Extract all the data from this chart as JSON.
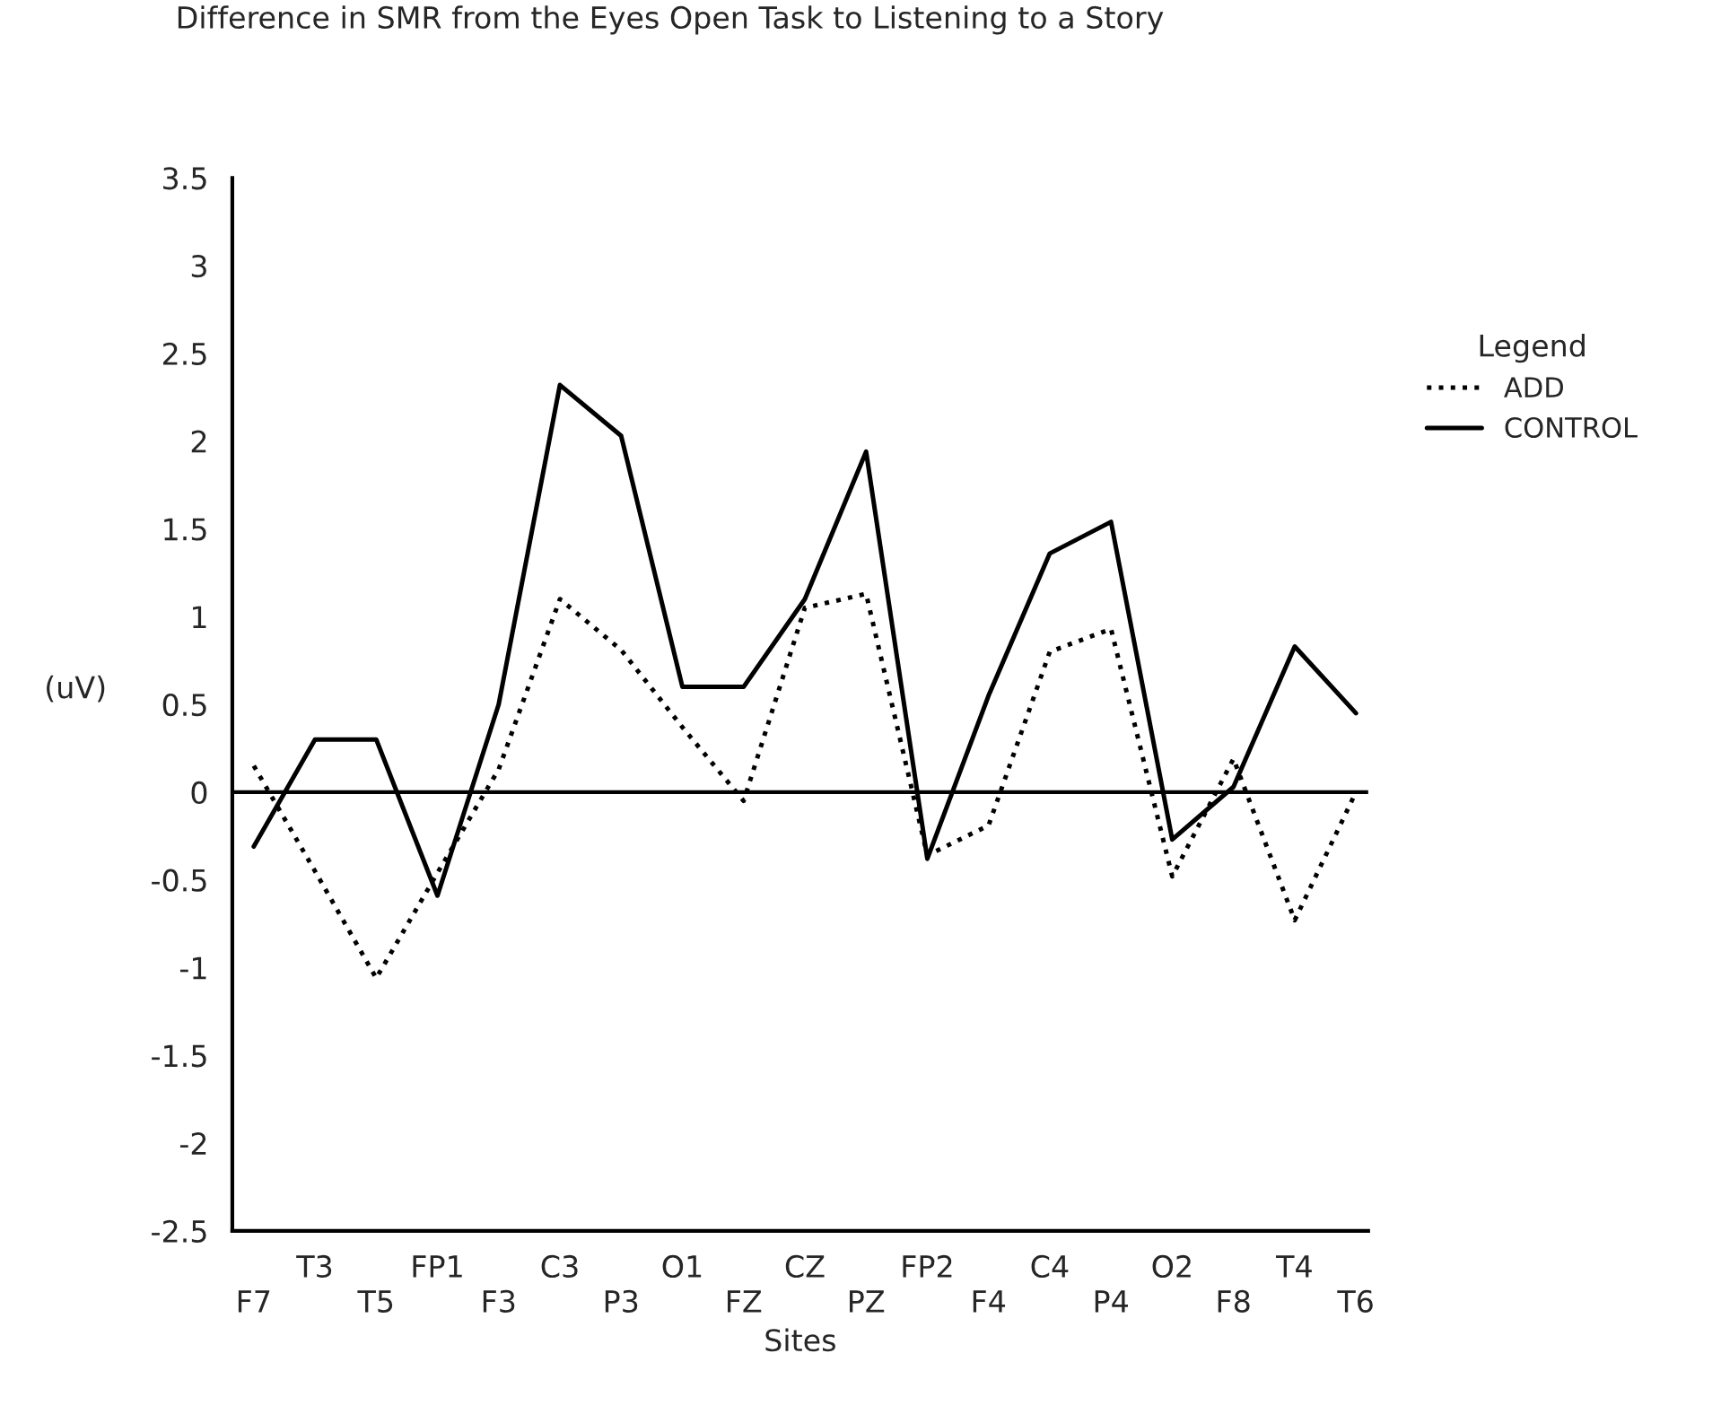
{
  "chart_data": {
    "type": "line",
    "title": "Difference in SMR from the Eyes Open Task to Listening to a Story",
    "xlabel": "Sites",
    "ylabel": "(uV)",
    "legend_title": "Legend",
    "legend": "right",
    "categories": [
      "F7",
      "T3",
      "T5",
      "FP1",
      "F3",
      "C3",
      "P3",
      "O1",
      "FZ",
      "CZ",
      "PZ",
      "FP2",
      "F4",
      "C4",
      "P4",
      "O2",
      "F8",
      "T4",
      "T6"
    ],
    "series": [
      {
        "name": "ADD",
        "color": "#000000",
        "line_style": "dotted",
        "values": [
          0.15,
          -0.45,
          -1.06,
          -0.46,
          0.13,
          1.1,
          0.81,
          0.37,
          -0.05,
          1.05,
          1.13,
          -0.36,
          -0.19,
          0.8,
          0.93,
          -0.48,
          0.19,
          -0.73,
          0.0
        ]
      },
      {
        "name": "CONTROL",
        "color": "#000000",
        "line_style": "solid",
        "values": [
          -0.31,
          0.3,
          0.3,
          -0.59,
          0.5,
          2.32,
          2.03,
          0.6,
          0.6,
          1.1,
          1.94,
          -0.38,
          0.55,
          1.36,
          1.54,
          -0.27,
          0.03,
          0.83,
          0.45
        ]
      }
    ],
    "ylim": [
      -2.5,
      3.5
    ],
    "yticks": [
      -2.5,
      -2,
      -1.5,
      -1,
      -0.5,
      0,
      0.5,
      1,
      1.5,
      2,
      2.5,
      3,
      3.5
    ],
    "grid": false,
    "marker": "none",
    "ref_lines": [
      {
        "axis": "y",
        "value": 0,
        "color": "#000000",
        "line_style": "solid"
      }
    ]
  }
}
